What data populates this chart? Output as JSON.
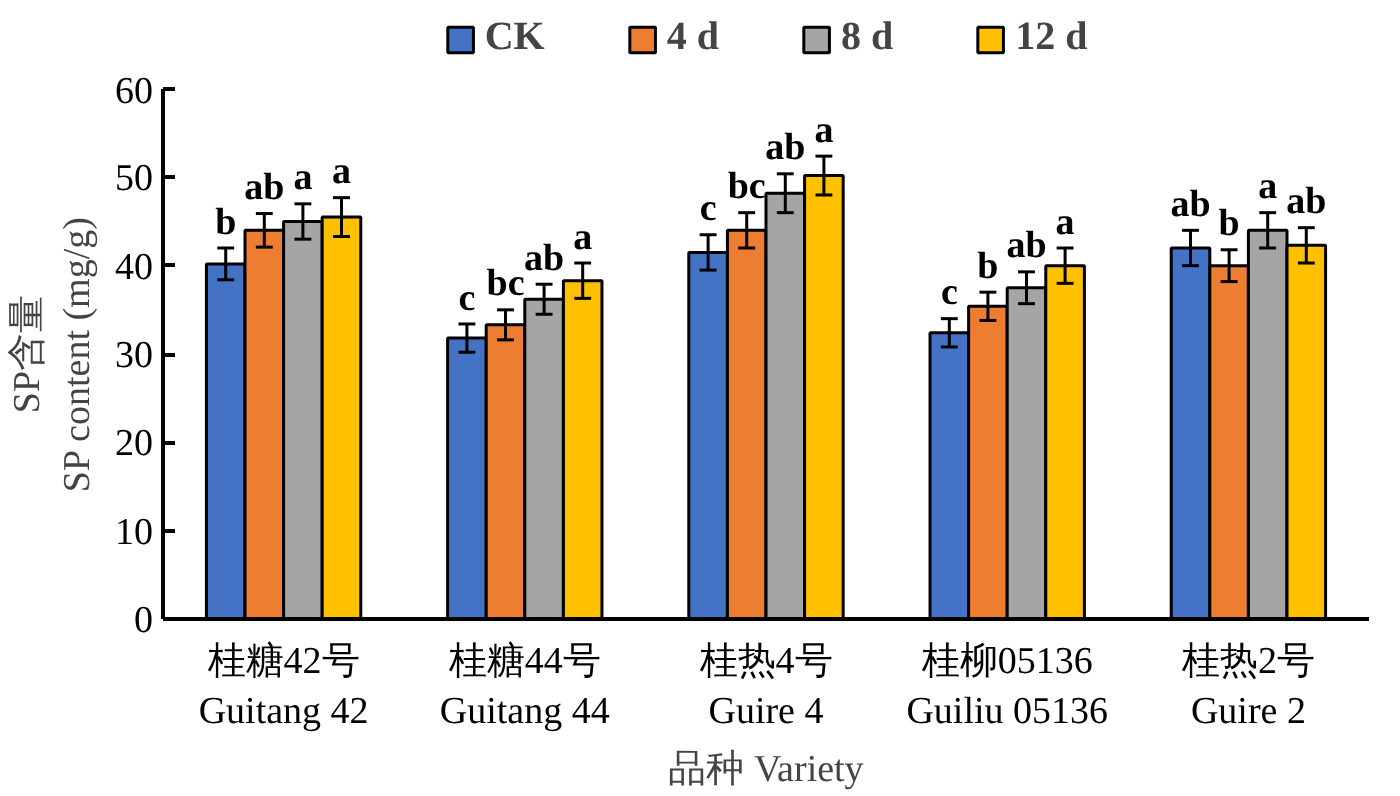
{
  "chart_data": {
    "type": "bar",
    "xlabel": "品种 Variety",
    "ylabel": "SP含量\nSP content (mg/g)",
    "categories": [
      "桂糖42号\nGuitang 42",
      "桂糖44号\nGuitang 44",
      "桂热4号\nGuire 4",
      "桂柳05136\nGuiliu 05136",
      "桂热2号\nGuire 2"
    ],
    "series": [
      {
        "name": "CK",
        "color": "#4472c4",
        "values": [
          40.2,
          31.8,
          41.5,
          32.4,
          42.0
        ],
        "errors": [
          1.8,
          1.6,
          2.0,
          1.6,
          2.0
        ],
        "value_labels": [
          "b",
          "c",
          "c",
          "c",
          "ab"
        ]
      },
      {
        "name": "4 d",
        "color": "#ed7d31",
        "values": [
          44.0,
          33.3,
          44.0,
          35.4,
          40.0
        ],
        "errors": [
          1.9,
          1.7,
          2.0,
          1.6,
          1.8
        ],
        "value_labels": [
          "ab",
          "bc",
          "bc",
          "b",
          "b"
        ]
      },
      {
        "name": "8 d",
        "color": "#a5a5a5",
        "values": [
          45.0,
          36.2,
          48.2,
          37.5,
          44.0
        ],
        "errors": [
          2.0,
          1.7,
          2.2,
          1.8,
          2.0
        ],
        "value_labels": [
          "a",
          "ab",
          "ab",
          "ab",
          "a"
        ]
      },
      {
        "name": "12 d",
        "color": "#ffc000",
        "values": [
          45.5,
          38.3,
          50.2,
          40.0,
          42.3
        ],
        "errors": [
          2.2,
          2.0,
          2.2,
          2.0,
          2.0
        ],
        "value_labels": [
          "a",
          "a",
          "a",
          "a",
          "ab"
        ]
      }
    ],
    "ylim": [
      0,
      60
    ],
    "yticks": [
      0,
      10,
      20,
      30,
      40,
      50,
      60
    ],
    "grid": false,
    "legend": "top"
  }
}
